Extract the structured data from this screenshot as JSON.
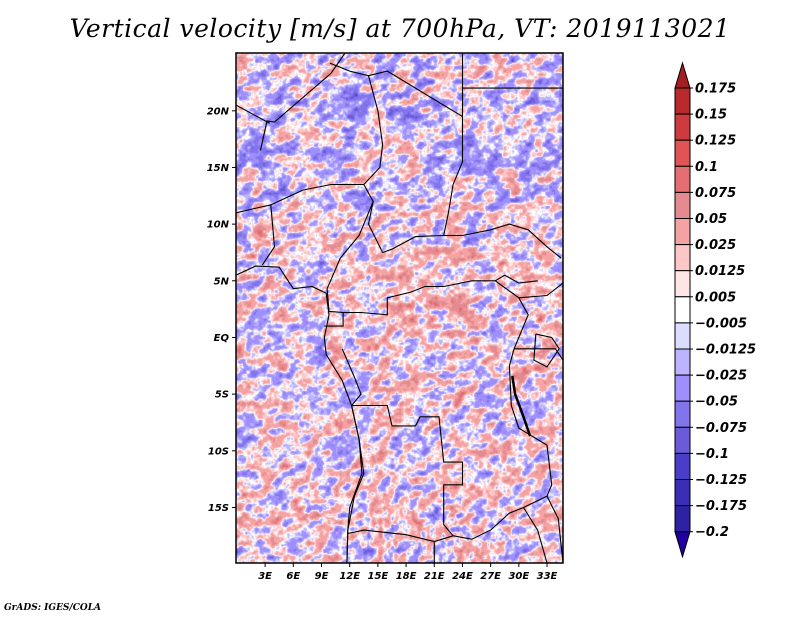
{
  "chart_data": {
    "type": "heatmap",
    "title": "Vertical velocity [m/s] at 700hPa, VT: 2019113021",
    "xlabel": "",
    "ylabel": "",
    "variable": "Vertical velocity",
    "units": "m/s",
    "level": "700hPa",
    "valid_time": "2019113021",
    "xlim": [
      -0.1,
      34.7
    ],
    "ylim": [
      -19.9,
      25.1
    ],
    "x_ticks": [
      3,
      6,
      9,
      12,
      15,
      18,
      21,
      24,
      27,
      30,
      33
    ],
    "x_tick_labels": [
      "3E",
      "6E",
      "9E",
      "12E",
      "15E",
      "18E",
      "21E",
      "24E",
      "27E",
      "30E",
      "33E"
    ],
    "y_ticks": [
      20,
      15,
      10,
      5,
      0,
      -5,
      -10,
      -15
    ],
    "y_tick_labels": [
      "20N",
      "15N",
      "10N",
      "5N",
      "EQ",
      "5S",
      "10S",
      "15S"
    ],
    "grid": false,
    "legend": "right",
    "colorbar": {
      "levels": [
        0.175,
        0.15,
        0.125,
        0.1,
        0.075,
        0.05,
        0.025,
        0.0125,
        0.005,
        -0.005,
        -0.0125,
        -0.025,
        -0.05,
        -0.075,
        -0.1,
        -0.125,
        -0.175,
        -0.2
      ],
      "labels": [
        "0.175",
        "0.15",
        "0.125",
        "0.1",
        "0.075",
        "0.05",
        "0.025",
        "0.0125",
        "0.005",
        "−0.005",
        "−0.0125",
        "−0.025",
        "−0.05",
        "−0.075",
        "−0.1",
        "−0.125",
        "−0.175",
        "−0.2"
      ],
      "colors": [
        "#a51e22",
        "#b82a2c",
        "#cc3c3e",
        "#e15456",
        "#e46e72",
        "#e38b90",
        "#f5a2a3",
        "#fdc6c7",
        "#fee5e6",
        "#ffffff",
        "#dcdcfe",
        "#bcb4fe",
        "#9f8ffc",
        "#8275ec",
        "#6b5bd8",
        "#4a3dc8",
        "#3b2db6",
        "#2f22a2",
        "#2000a0"
      ],
      "extend": "both"
    },
    "map_region": "Central Africa",
    "overlay": "country borders and coastlines"
  },
  "footer": {
    "credit": "GrADS: IGES/COLA"
  }
}
